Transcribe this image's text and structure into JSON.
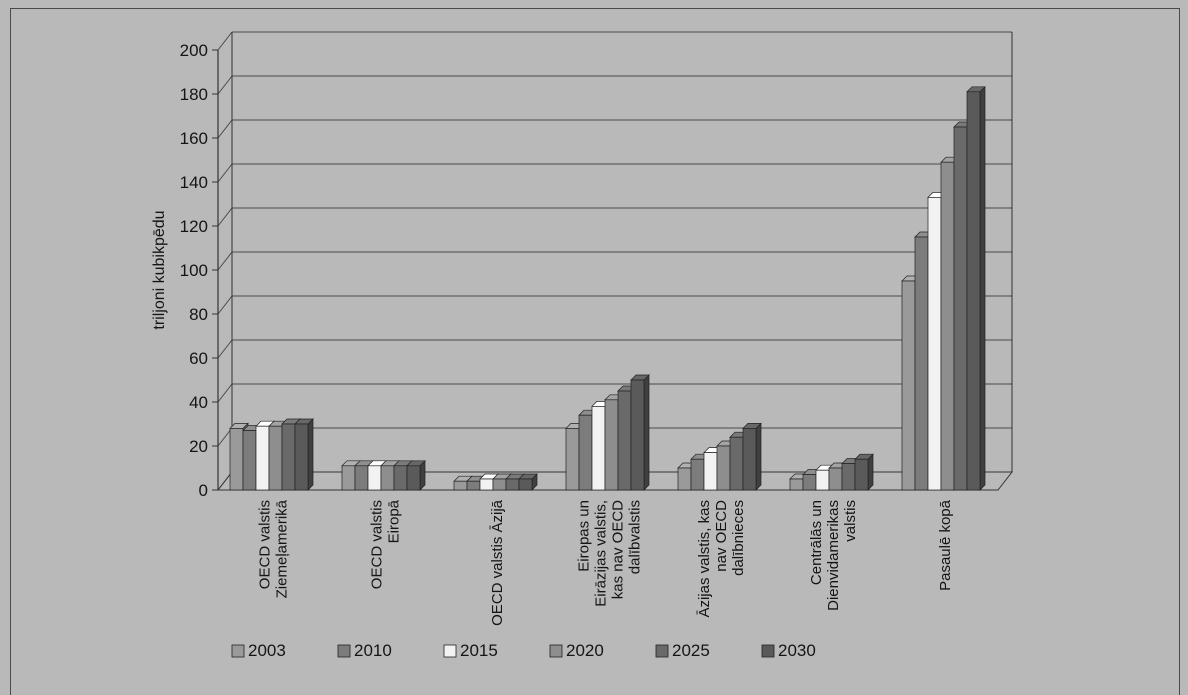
{
  "chart_data": {
    "type": "bar",
    "ylabel": "triljoni kubikpēdu",
    "ylim": [
      0,
      200
    ],
    "yticks": [
      0,
      20,
      40,
      60,
      80,
      100,
      120,
      140,
      160,
      180,
      200
    ],
    "categories": [
      [
        "OECD valstis",
        "Ziemeļamerikā"
      ],
      [
        "OECD valstis",
        "Eiropā"
      ],
      [
        "OECD valstis Āzijā"
      ],
      [
        "Eiropas un",
        "Eirāzijas valstis,",
        "kas nav OECD",
        "dalībvalstis"
      ],
      [
        "Āzijas valstis, kas",
        "nav OECD",
        "dalībnieces"
      ],
      [
        "Centrālās un",
        "Dienvidamerikas",
        "valstis"
      ],
      [
        "Pasaulē kopā"
      ]
    ],
    "series": [
      {
        "name": "2003",
        "color": "#9a9a9a",
        "values": [
          28,
          11,
          4,
          28,
          10,
          5,
          95
        ]
      },
      {
        "name": "2010",
        "color": "#7c7c7c",
        "values": [
          27,
          11,
          4,
          34,
          14,
          7,
          115
        ]
      },
      {
        "name": "2015",
        "color": "#f2f2f2",
        "values": [
          29,
          11,
          5,
          38,
          17,
          9,
          133
        ]
      },
      {
        "name": "2020",
        "color": "#8e8e8e",
        "values": [
          29,
          11,
          5,
          41,
          20,
          10,
          149
        ]
      },
      {
        "name": "2025",
        "color": "#6a6a6a",
        "values": [
          30,
          11,
          5,
          45,
          24,
          12,
          165
        ]
      },
      {
        "name": "2030",
        "color": "#5a5a5a",
        "values": [
          30,
          11,
          5,
          50,
          28,
          14,
          181
        ]
      }
    ],
    "legend_position": "bottom",
    "grid": true
  }
}
